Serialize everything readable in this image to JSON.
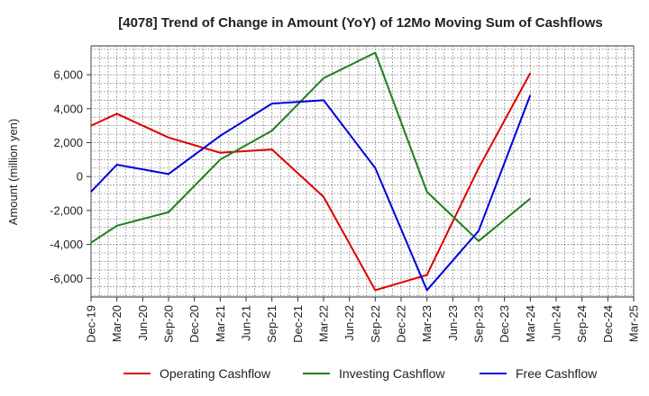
{
  "chart_data": {
    "type": "line",
    "title": "[4078]  Trend of Change in Amount (YoY) of 12Mo Moving Sum of Cashflows",
    "xlabel": "",
    "ylabel": "Amount (million yen)",
    "categories": [
      "Dec-19",
      "Mar-20",
      "Jun-20",
      "Sep-20",
      "Dec-20",
      "Mar-21",
      "Jun-21",
      "Sep-21",
      "Dec-21",
      "Mar-22",
      "Jun-22",
      "Sep-22",
      "Dec-22",
      "Mar-23",
      "Jun-23",
      "Sep-23",
      "Dec-23",
      "Mar-24",
      "Jun-24",
      "Sep-24",
      "Dec-24",
      "Mar-25"
    ],
    "ylim": [
      -7100,
      7700
    ],
    "yticks": [
      -6000,
      -4000,
      -2000,
      0,
      2000,
      4000,
      6000
    ],
    "ytick_labels": [
      "-6,000",
      "-4,000",
      "-2,000",
      "0",
      "2,000",
      "4,000",
      "6,000"
    ],
    "grid": true,
    "legend_position": "bottom",
    "series": [
      {
        "name": "Operating Cashflow",
        "color": "#e00000",
        "values": [
          3000,
          3700,
          null,
          2300,
          null,
          1400,
          null,
          1600,
          null,
          -1200,
          null,
          -6700,
          null,
          -5800,
          null,
          500,
          null,
          6100,
          null,
          null,
          null,
          null
        ]
      },
      {
        "name": "Investing Cashflow",
        "color": "#208020",
        "values": [
          -3900,
          -2900,
          null,
          -2100,
          null,
          1000,
          null,
          2700,
          null,
          5800,
          null,
          7300,
          null,
          -900,
          null,
          -3800,
          null,
          -1300,
          null,
          null,
          null,
          null
        ]
      },
      {
        "name": "Free Cashflow",
        "color": "#0000dd",
        "values": [
          -900,
          700,
          null,
          150,
          null,
          2400,
          null,
          4300,
          null,
          4500,
          null,
          500,
          null,
          -6700,
          null,
          -3200,
          null,
          4800,
          null,
          null,
          null,
          null
        ]
      }
    ]
  }
}
